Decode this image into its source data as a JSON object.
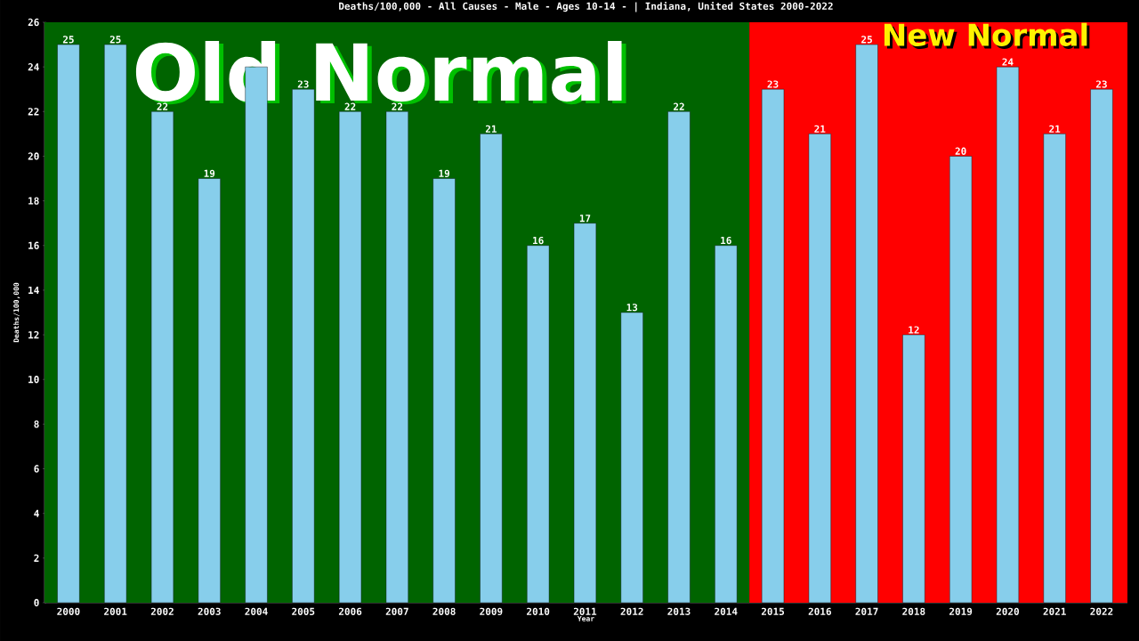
{
  "chart_data": {
    "type": "bar",
    "title": "Deaths/100,000 - All Causes - Male - Ages 10-14 -  | Indiana, United States 2000-2022",
    "xlabel": "Year",
    "ylabel": "Deaths/100,000",
    "categories": [
      "2000",
      "2001",
      "2002",
      "2003",
      "2004",
      "2005",
      "2006",
      "2007",
      "2008",
      "2009",
      "2010",
      "2011",
      "2012",
      "2013",
      "2014",
      "2015",
      "2016",
      "2017",
      "2018",
      "2019",
      "2020",
      "2021",
      "2022"
    ],
    "values": [
      25,
      25,
      22,
      19,
      24,
      23,
      22,
      22,
      19,
      21,
      16,
      17,
      13,
      22,
      16,
      23,
      21,
      25,
      12,
      20,
      24,
      21,
      23
    ],
    "color": "#87ceeb",
    "value_labels": [
      "25",
      "25",
      "22",
      "19",
      null,
      "23",
      "22",
      "22",
      "19",
      "21",
      "16",
      "17",
      "13",
      "22",
      "16",
      "23",
      "21",
      "25",
      "12",
      "20",
      "24",
      "21",
      "23"
    ],
    "ylim": [
      0,
      26
    ],
    "yticks": [
      0,
      2,
      4,
      6,
      8,
      10,
      12,
      14,
      16,
      18,
      20,
      22,
      24,
      26
    ],
    "bands": [
      {
        "axis": "x",
        "from": "2000",
        "to": "2014",
        "label": "Old Normal",
        "color": "#006400"
      },
      {
        "axis": "x",
        "from": "2015",
        "to": "2022",
        "label": "New Normal",
        "color": "#ff0000"
      }
    ]
  }
}
